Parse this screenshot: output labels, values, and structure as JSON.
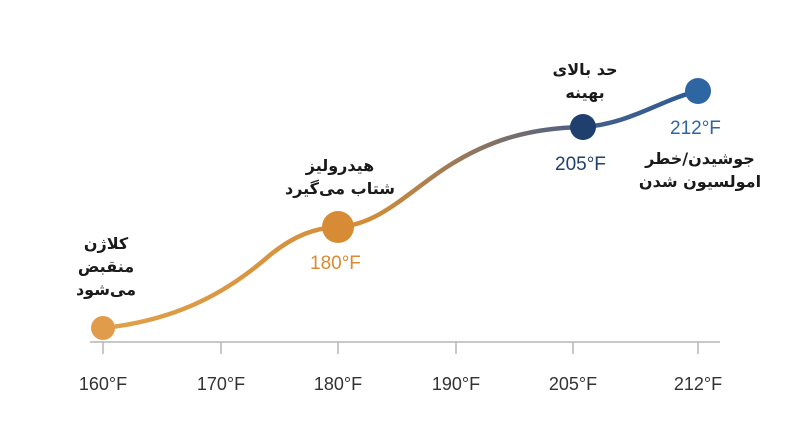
{
  "axis": {
    "ticks": [
      "160°F",
      "170°F",
      "180°F",
      "190°F",
      "205°F",
      "212°F"
    ]
  },
  "points": [
    {
      "temp": "160°F",
      "value": 160,
      "color": "#e09c4a",
      "label_lines": [
        "کلاژن",
        "منقبض",
        "می‌شود"
      ]
    },
    {
      "temp": "180°F",
      "value": 180,
      "color": "#d88b35",
      "label_lines": [
        "هیدرولیز",
        "شتاب می‌گیرد"
      ]
    },
    {
      "temp": "205°F",
      "value": 205,
      "color": "#1f3f6e",
      "label_lines": [
        "حد بالای",
        "بهینه"
      ]
    },
    {
      "temp": "212°F",
      "value": 212,
      "color": "#2e66a3",
      "label_lines": [
        "جوشیدن/خطر",
        "امولسیون شدن"
      ]
    }
  ],
  "colors": {
    "curve_start": "#e0a24a",
    "curve_mid": "#d28c38",
    "curve_end": "#2a5b96",
    "axis": "#b5b5b5"
  }
}
